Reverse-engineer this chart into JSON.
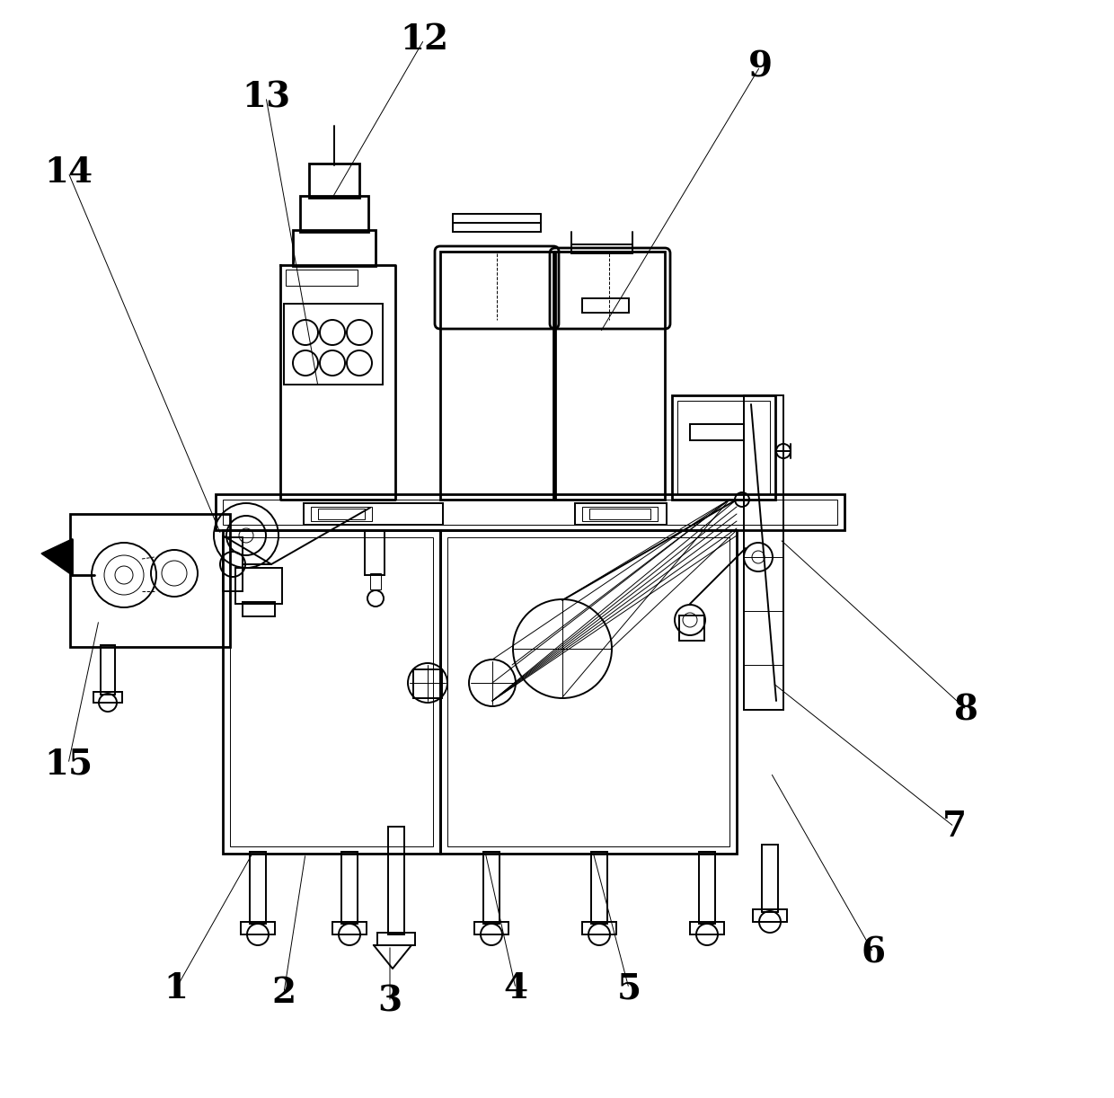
{
  "bg_color": "#ffffff",
  "line_color": "#000000",
  "fig_width": 12.4,
  "fig_height": 12.22,
  "dpi": 100,
  "label_fontsize": 28,
  "lw_main": 1.4,
  "lw_thin": 0.7,
  "lw_thick": 2.0
}
